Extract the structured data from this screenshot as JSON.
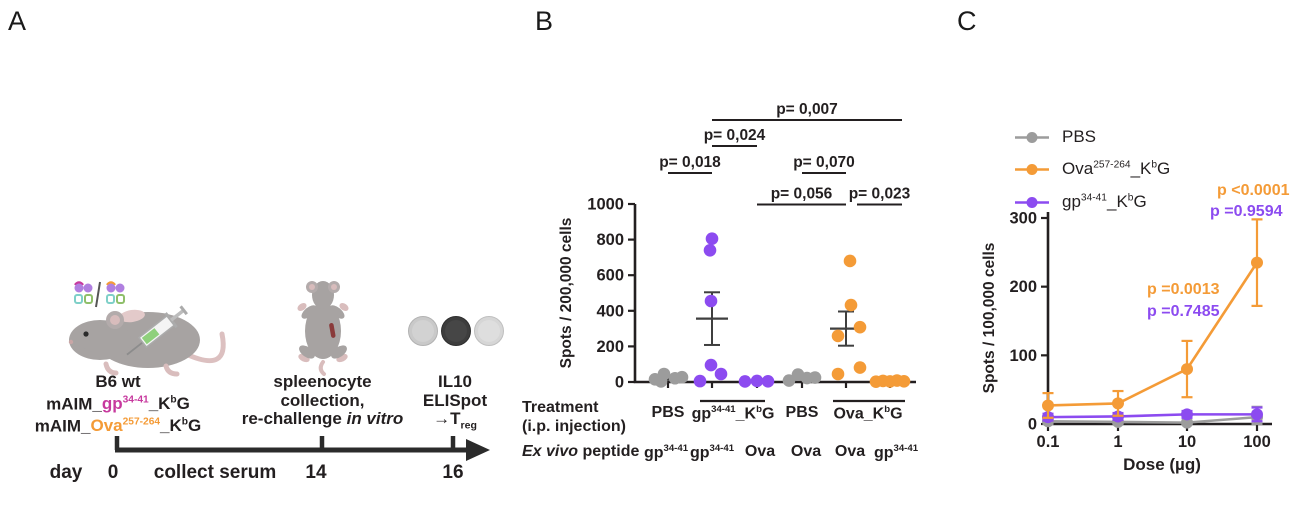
{
  "colors": {
    "orange": "#F49B37",
    "purple": "#8C4BF0",
    "gray": "#9C9C9C",
    "magenta": "#C7399E",
    "ink": "#231F20",
    "errbar": "#3F3F3F"
  },
  "panel_a": {
    "label": "A",
    "injection_caption": {
      "title": "B6 wt",
      "construct1": {
        "prefix": "mAIM_",
        "antigen": "gp^{34-41}",
        "suffix": "_K^{b}G"
      },
      "construct2": {
        "prefix": "mAIM_",
        "antigen": "Ova^{257-264}",
        "suffix": "_K^{b}G"
      }
    },
    "spleen_caption": {
      "line1": "spleenocyte",
      "line2": "collection,",
      "line3_plain": "re-challenge ",
      "line3_italic": "in vitro"
    },
    "elispot_caption": {
      "line1": "IL10",
      "line2": "ELISpot",
      "line3": "→T_{reg}"
    },
    "timeline": {
      "day_label": "day",
      "t0": "0",
      "serum_label": "collect serum",
      "t14": "14",
      "t16": "16"
    }
  },
  "panel_b": {
    "label": "B"
  },
  "panel_c": {
    "label": "C"
  },
  "chart_data": [
    {
      "id": "panel-b",
      "type": "scatter",
      "ylabel": "Spots / 200,000 cells",
      "ylim": [
        0,
        1000
      ],
      "yticks": [
        0,
        200,
        400,
        600,
        800,
        1000
      ],
      "row_headers": {
        "treatment_line1": "Treatment",
        "treatment_line2": "(i.p. injection)",
        "exvivo_italic": "Ex vivo",
        "exvivo_rest": " peptide"
      },
      "treatment_labels": [
        {
          "text": "PBS",
          "groups": [
            0
          ],
          "overline": false
        },
        {
          "text": "gp^{34-41}_K^{b}G",
          "groups": [
            1,
            2
          ],
          "overline": true
        },
        {
          "text": "PBS",
          "groups": [
            3
          ],
          "overline": false
        },
        {
          "text": "Ova_K^{b}G",
          "groups": [
            4,
            5
          ],
          "overline": true
        }
      ],
      "exvivo_labels": [
        "gp^{34-41}",
        "gp^{34-41}",
        "Ova",
        "Ova",
        "Ova",
        "gp^{34-41}"
      ],
      "groups": [
        {
          "color_key": "gray",
          "points": [
            {
              "dx": -13,
              "v": 15
            },
            {
              "dx": -7,
              "v": 3
            },
            {
              "dx": -4,
              "v": 45
            },
            {
              "dx": 7,
              "v": 21
            },
            {
              "dx": 14,
              "v": 27
            }
          ],
          "mean": 22,
          "sem": 9
        },
        {
          "color_key": "purple",
          "points": [
            {
              "dx": 0,
              "v": 805
            },
            {
              "dx": -2,
              "v": 740
            },
            {
              "dx": -1,
              "v": 455
            },
            {
              "dx": -1,
              "v": 95
            },
            {
              "dx": 9,
              "v": 45
            },
            {
              "dx": -12,
              "v": 5
            }
          ],
          "mean": 356,
          "sem": 148
        },
        {
          "color_key": "purple",
          "points": [
            {
              "dx": -12,
              "v": 3
            },
            {
              "dx": 0,
              "v": 6
            },
            {
              "dx": 11,
              "v": 4
            }
          ],
          "mean": 4,
          "sem": 3
        },
        {
          "color_key": "gray",
          "points": [
            {
              "dx": -13,
              "v": 8
            },
            {
              "dx": -4,
              "v": 42
            },
            {
              "dx": 5,
              "v": 22
            },
            {
              "dx": 13,
              "v": 25
            }
          ],
          "mean": 24,
          "sem": 9
        },
        {
          "color_key": "orange",
          "points": [
            {
              "dx": 4,
              "v": 680
            },
            {
              "dx": 5,
              "v": 432
            },
            {
              "dx": 14,
              "v": 308
            },
            {
              "dx": -8,
              "v": 259
            },
            {
              "dx": 14,
              "v": 81
            },
            {
              "dx": -8,
              "v": 45
            }
          ],
          "mean": 300,
          "sem": 96
        },
        {
          "color_key": "orange",
          "points": [
            {
              "dx": -14,
              "v": 2
            },
            {
              "dx": -7,
              "v": 6
            },
            {
              "dx": 0,
              "v": 3
            },
            {
              "dx": 7,
              "v": 8
            },
            {
              "dx": 14,
              "v": 4
            }
          ],
          "mean": 5,
          "sem": 3
        }
      ],
      "comparisons": [
        {
          "label": "p= 0,018",
          "from": 0,
          "to": 1,
          "row": 2
        },
        {
          "label": "p= 0,024",
          "from": 1,
          "to": 2,
          "row": 3
        },
        {
          "label": "p= 0,007",
          "from": 1,
          "to": 5,
          "row": 4,
          "dx2": 12
        },
        {
          "label": "p= 0,056",
          "from": 2,
          "to": 4,
          "row": 1
        },
        {
          "label": "p= 0,070",
          "from": 3,
          "to": 4,
          "row": 2
        },
        {
          "label": "p= 0,023",
          "from": 4,
          "to": 5,
          "row": 1,
          "dx1": 11,
          "dx2": 12
        }
      ]
    },
    {
      "id": "panel-c",
      "type": "line",
      "xlabel": "Dose (µg)",
      "ylabel": "Spots / 100,000 cells",
      "x_tick_labels": [
        "0.1",
        "1",
        "10",
        "100"
      ],
      "ylim": [
        0,
        300
      ],
      "yticks": [
        0,
        100,
        200,
        300
      ],
      "series": [
        {
          "name": "PBS",
          "color_key": "gray",
          "values": [
            4,
            3,
            2,
            10
          ],
          "err": [
            4,
            3,
            3,
            15
          ]
        },
        {
          "name": "gp^{34-41}_K^{b}G",
          "color_key": "purple",
          "values": [
            10,
            11,
            14,
            14
          ],
          "err": [
            5,
            5,
            5,
            10
          ]
        },
        {
          "name": "Ova^{257-264}_K^{b}G",
          "color_key": "orange",
          "values": [
            27,
            30,
            80,
            235
          ],
          "err": [
            18,
            18,
            41,
            63
          ]
        }
      ],
      "legend": [
        {
          "name": "PBS",
          "color_key": "gray"
        },
        {
          "name": "Ova^{257-264}_K^{b}G",
          "color_key": "orange"
        },
        {
          "name": "gp^{34-41}_K^{b}G",
          "color_key": "purple"
        }
      ],
      "annotations": [
        {
          "text": "p <0.0001",
          "color_key": "orange",
          "pos": "top"
        },
        {
          "text": "p =0.9594",
          "color_key": "purple",
          "pos": "top"
        },
        {
          "text": "p =0.0013",
          "color_key": "orange",
          "pos": "mid"
        },
        {
          "text": "p =0.7485",
          "color_key": "purple",
          "pos": "mid"
        }
      ]
    }
  ]
}
